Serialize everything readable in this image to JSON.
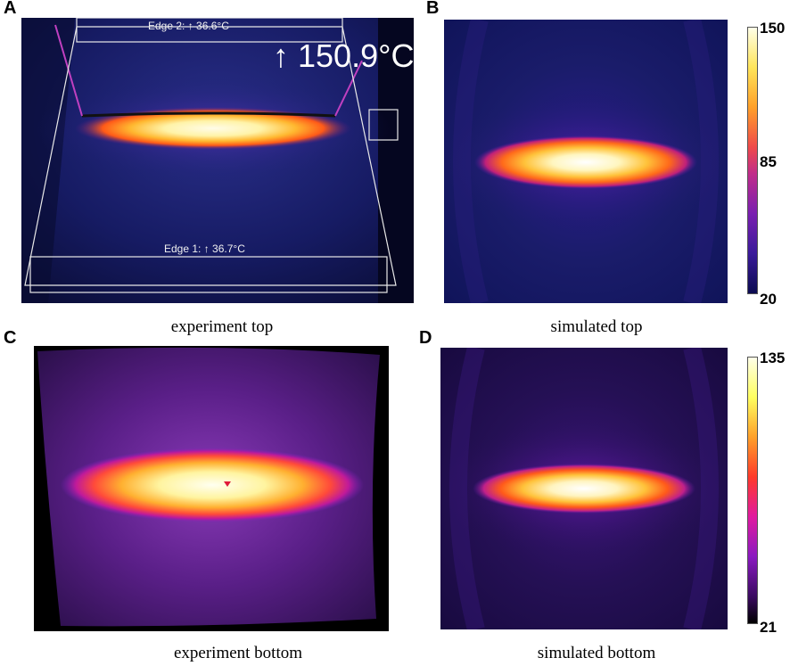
{
  "panels": {
    "a": {
      "letter": "A",
      "caption": "experiment top",
      "edge2_label": "Edge 2: ↑ 36.6°C",
      "edge1_label": "Edge 1: ↑ 36.7°C",
      "max_temp": "↑ 150.9°C"
    },
    "b": {
      "letter": "B",
      "caption": "simulated top"
    },
    "c": {
      "letter": "C",
      "caption": "experiment bottom"
    },
    "d": {
      "letter": "D",
      "caption": "simulated bottom"
    }
  },
  "colorbars": {
    "top": {
      "max": "150",
      "mid": "85",
      "min": "20"
    },
    "bottom": {
      "max": "135",
      "min": "21"
    }
  },
  "colors": {
    "background_dark": "#151a5c",
    "hot_core": "#fffbe0",
    "hot_yellow": "#ffd640",
    "hot_orange": "#ff7a1a",
    "hot_magenta": "#b0206a",
    "purple": "#6a1fa0"
  }
}
